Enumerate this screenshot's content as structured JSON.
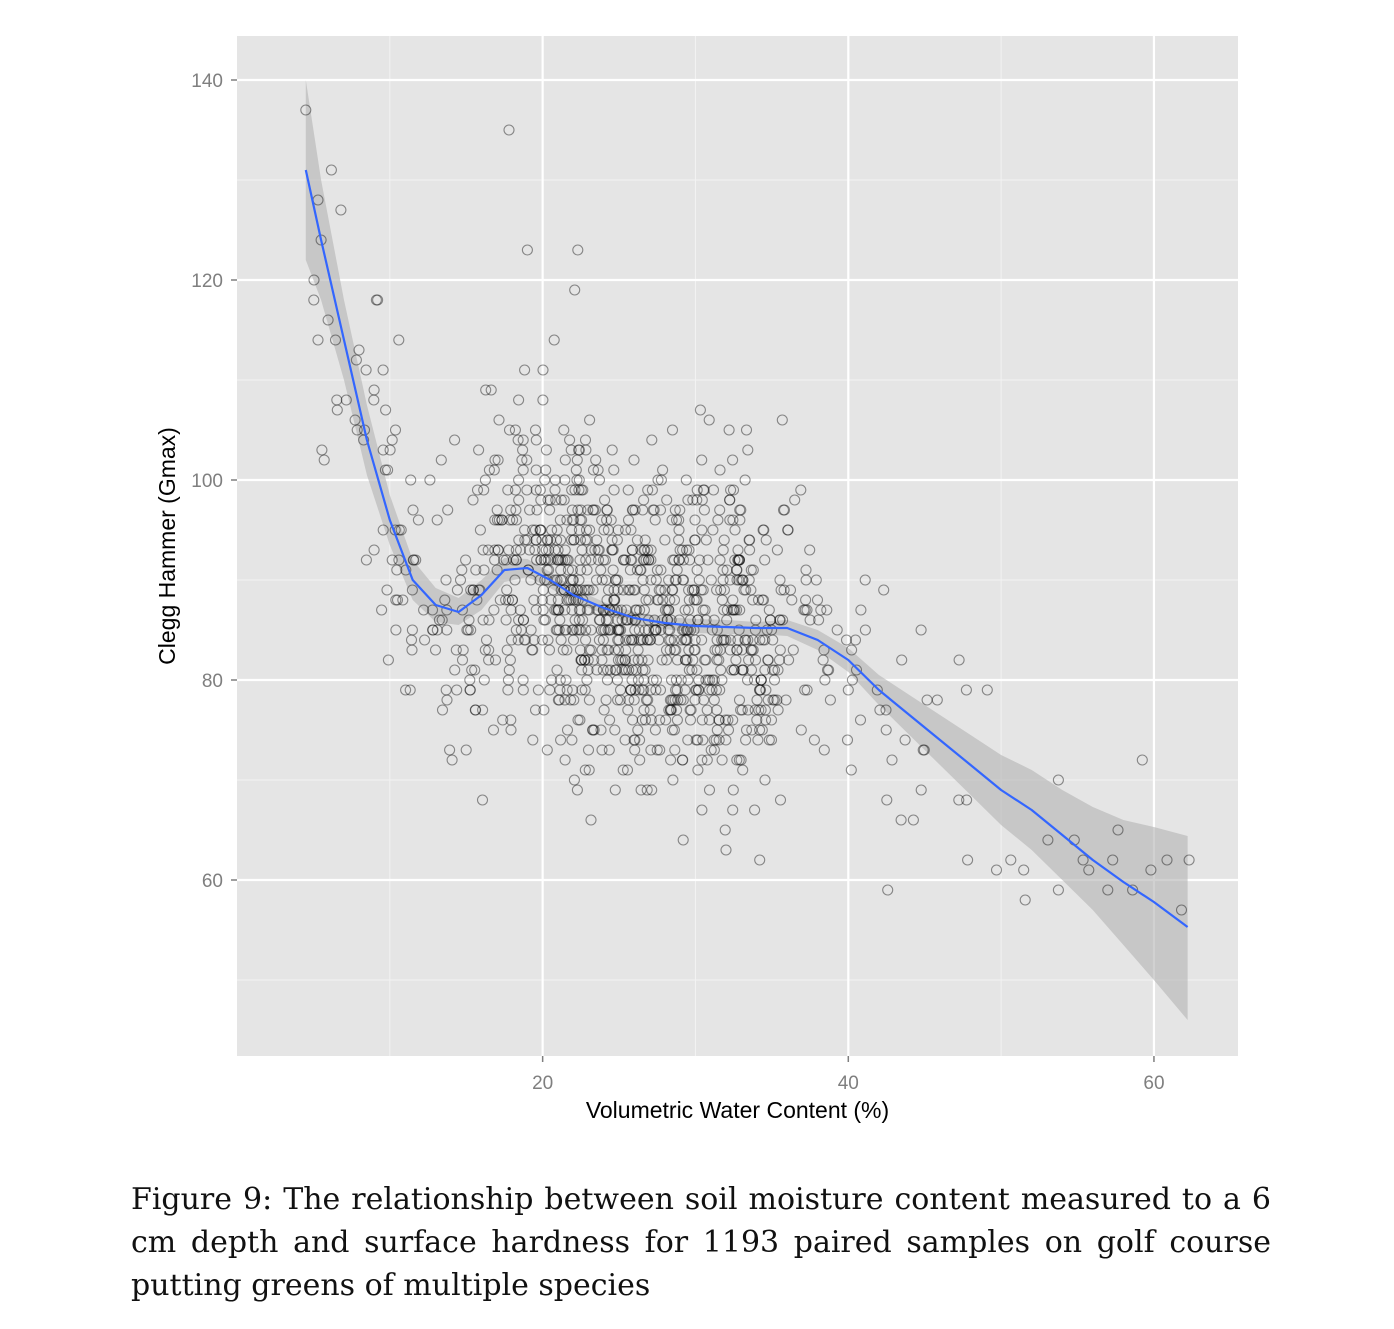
{
  "caption": "Figure 9: The relationship between soil moisture content measured to a 6 cm depth and surface hardness for 1193 paired samples on golf course putting greens of multiple species",
  "chart_data": {
    "type": "scatter",
    "title": "",
    "xlabel": "Volumetric Water Content (%)",
    "ylabel": "Clegg Hammer (Gmax)",
    "xlim": [
      0,
      65.5
    ],
    "ylim": [
      42.4,
      144.4
    ],
    "x_ticks": [
      20,
      40,
      60
    ],
    "y_ticks": [
      60,
      80,
      100,
      120,
      140
    ],
    "x_tick_labels": [
      "20",
      "40",
      "60"
    ],
    "y_tick_labels": [
      "60",
      "80",
      "100",
      "120",
      "140"
    ],
    "grid": true,
    "legend": "none",
    "colors": {
      "panel": "#e5e5e5",
      "grid_major": "#ffffff",
      "grid_minor": "#f2f2f2",
      "points": "#000000",
      "smooth_line": "#3366ff",
      "ribbon": "#b3b3b3",
      "tick_text": "#7f7f7f"
    },
    "smooth": {
      "x": [
        4.5,
        5.5,
        7,
        8.5,
        10,
        11.5,
        13,
        14.5,
        16,
        17.5,
        19,
        20.5,
        22,
        24,
        26,
        28,
        30,
        32,
        34,
        36,
        38,
        40,
        42,
        44,
        46,
        48,
        50,
        52,
        54,
        56,
        58,
        60,
        62.2
      ],
      "y": [
        131,
        124,
        114,
        104,
        96,
        90,
        87.5,
        86.8,
        88.5,
        91,
        91.2,
        90,
        88.5,
        87.2,
        86.2,
        85.7,
        85.4,
        85.3,
        85.2,
        85.2,
        84,
        82,
        79,
        76.5,
        74,
        71.5,
        69,
        67,
        64.5,
        62,
        59.8,
        57.8,
        55.3
      ],
      "lower": [
        122,
        118,
        110,
        100.5,
        93.5,
        88,
        85.8,
        85.5,
        87,
        89.8,
        90.3,
        89.2,
        87.8,
        86.6,
        85.6,
        85.1,
        84.7,
        84.6,
        84.6,
        84.4,
        83,
        80.8,
        77.5,
        74.5,
        71.5,
        68.5,
        65.5,
        63,
        60,
        57,
        53.5,
        50,
        46
      ],
      "upper": [
        140,
        130,
        118,
        107.5,
        98.5,
        92,
        89.2,
        88.2,
        90,
        92.2,
        92.1,
        90.8,
        89.2,
        87.8,
        86.8,
        86.3,
        86.1,
        86,
        85.8,
        86,
        85,
        83.2,
        80.5,
        78.5,
        76.5,
        74.5,
        72.5,
        71,
        69,
        67.3,
        66,
        65.3,
        64.4
      ]
    },
    "notable_points": {
      "x": [
        4.5,
        5.3,
        5.5,
        5.3,
        6.8,
        17.8,
        19,
        22.3,
        22.1,
        9.2,
        62.3,
        61.8,
        59.8,
        57.3,
        49.7,
        32,
        34.2,
        29.2
      ],
      "y": [
        137,
        128,
        124,
        114,
        127,
        135,
        123,
        123,
        119,
        118,
        62,
        57,
        61,
        62,
        61,
        63,
        62,
        64
      ]
    },
    "point_count": 1193
  }
}
